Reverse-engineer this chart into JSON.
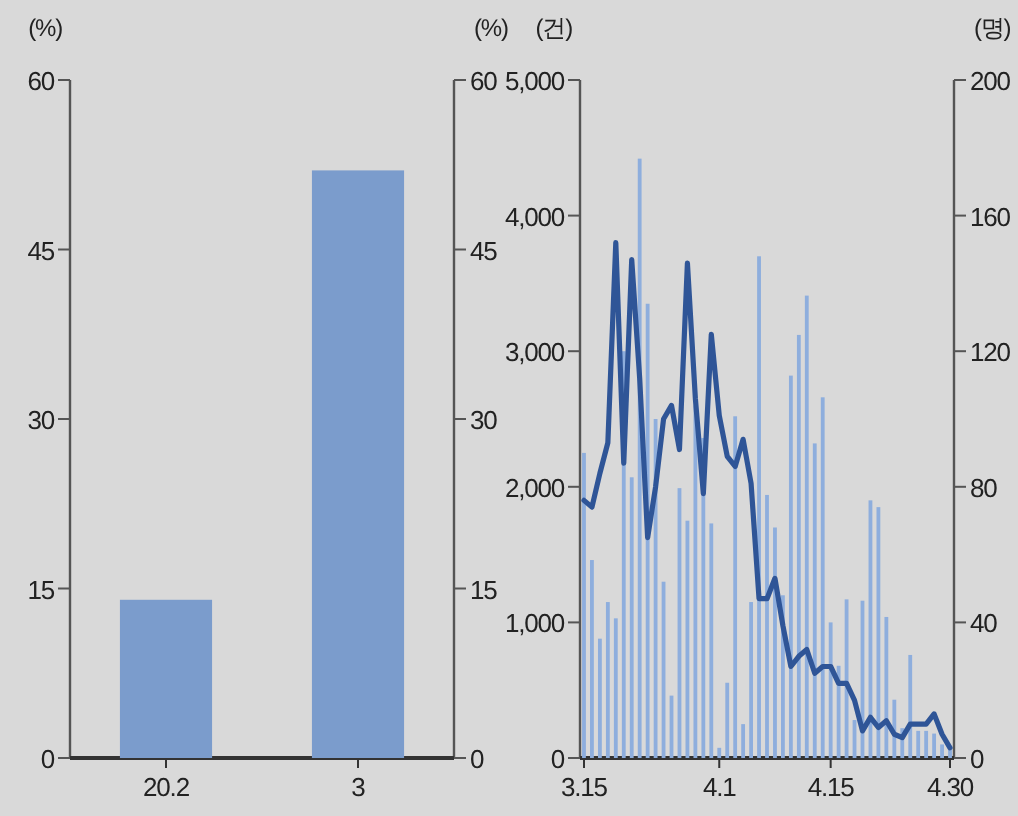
{
  "chart_data": [
    {
      "type": "bar",
      "categories": [
        "20.2",
        "3"
      ],
      "ylabel": "(%)",
      "y2label": "(%)",
      "ylim": [
        0,
        60
      ],
      "yticks": [
        0,
        15,
        30,
        45,
        60
      ],
      "y2lim": [
        0,
        60
      ],
      "y2ticks": [
        0,
        15,
        30,
        45,
        60
      ],
      "series": [
        {
          "color": "#7b9ccc",
          "values": [
            14,
            52
          ]
        }
      ]
    },
    {
      "type": "bar",
      "categories": [
        "3.15",
        null,
        null,
        null,
        null,
        null,
        null,
        null,
        null,
        null,
        null,
        null,
        null,
        null,
        null,
        null,
        null,
        "4.1",
        null,
        null,
        null,
        null,
        null,
        null,
        null,
        null,
        null,
        null,
        null,
        null,
        null,
        "4.15",
        null,
        null,
        null,
        null,
        null,
        null,
        null,
        null,
        null,
        null,
        null,
        null,
        null,
        null,
        "4.30"
      ],
      "ylabel": "(건)",
      "y2label": "(명)",
      "ylim": [
        0,
        5000
      ],
      "yticks": [
        {
          "value": 0,
          "label": "0"
        },
        {
          "value": 1000,
          "label": "1,000"
        },
        {
          "value": 2000,
          "label": "2,000"
        },
        {
          "value": 3000,
          "label": "3,000"
        },
        {
          "value": 4000,
          "label": "4,000"
        },
        {
          "value": 5000,
          "label": "5,000"
        }
      ],
      "y2lim": [
        0,
        200
      ],
      "y2ticks": [
        0,
        40,
        80,
        120,
        160,
        200
      ],
      "series": [
        {
          "type": "bar",
          "color": "#8eaedd",
          "values": [
            2250,
            1460,
            880,
            1150,
            1030,
            3000,
            2070,
            4420,
            3350,
            2500,
            1300,
            460,
            1990,
            1750,
            2600,
            2360,
            1730,
            75,
            555,
            2520,
            250,
            1150,
            3700,
            1940,
            1700,
            1200,
            2820,
            3120,
            3410,
            2320,
            2660,
            1000,
            680,
            1170,
            280,
            1160,
            1900,
            1850,
            1040,
            430,
            220,
            760,
            200,
            200,
            180,
            100,
            60
          ]
        },
        {
          "type": "line",
          "axis": "y2",
          "color": "#2f5597",
          "values": [
            76,
            74,
            84,
            93,
            152,
            87,
            147,
            112,
            65,
            80,
            100,
            104,
            91,
            146,
            106,
            78,
            125,
            101,
            89,
            86,
            94,
            81,
            47,
            47,
            53,
            39,
            27,
            30,
            32,
            25,
            27,
            27,
            22,
            22,
            17,
            8,
            12,
            9,
            11,
            7,
            6,
            10,
            10,
            10,
            13,
            7,
            3
          ]
        }
      ]
    }
  ]
}
